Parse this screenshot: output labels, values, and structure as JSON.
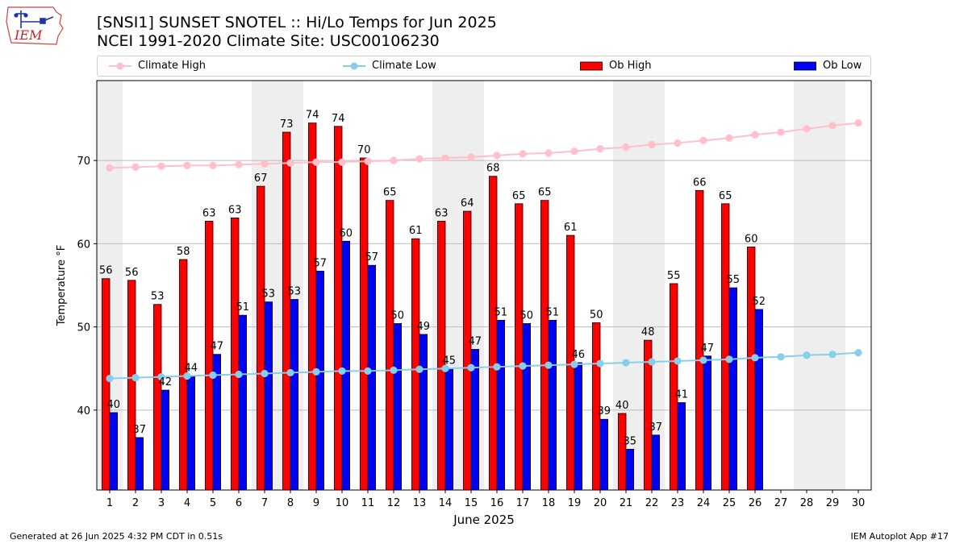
{
  "header": {
    "title_line1": "[SNSI1] SUNSET SNOTEL :: Hi/Lo Temps for Jun 2025",
    "title_line2": "NCEI 1991-2020 Climate Site: USC00106230",
    "logo_text": "IEM"
  },
  "legend": {
    "climate_high": "Climate High",
    "climate_low": "Climate Low",
    "ob_high": "Ob High",
    "ob_low": "Ob Low"
  },
  "footer": {
    "left": "Generated at 26 Jun 2025 4:32 PM CDT in 0.51s",
    "right": "IEM Autoplot App #17"
  },
  "colors": {
    "ob_high": "#ff0000",
    "ob_low": "#0000ff",
    "climate_high": "#ffc0cb",
    "climate_low": "#87ceeb",
    "weekend_band": "#eeeeee",
    "grid": "#bbbbbb"
  },
  "chart_data": {
    "type": "bar",
    "title": "[SNSI1] SUNSET SNOTEL :: Hi/Lo Temps for Jun 2025",
    "xlabel": "June 2025",
    "ylabel": "Temperature °F",
    "ylim": [
      30.4,
      79.6
    ],
    "yticks": [
      40,
      50,
      60,
      70
    ],
    "grid": "horizontal",
    "legend_position": "top",
    "days": [
      1,
      2,
      3,
      4,
      5,
      6,
      7,
      8,
      9,
      10,
      11,
      12,
      13,
      14,
      15,
      16,
      17,
      18,
      19,
      20,
      21,
      22,
      23,
      24,
      25,
      26,
      27,
      28,
      29,
      30
    ],
    "weekend_days": [
      1,
      7,
      8,
      14,
      15,
      21,
      22,
      28,
      29
    ],
    "series": [
      {
        "name": "Ob High",
        "kind": "bar",
        "values": [
          55.8,
          55.6,
          52.7,
          58.1,
          62.7,
          63.1,
          66.9,
          73.4,
          74.5,
          74.1,
          70.3,
          65.2,
          60.6,
          62.7,
          63.9,
          68.1,
          64.8,
          65.2,
          61.0,
          50.5,
          39.6,
          48.4,
          55.2,
          66.4,
          64.8,
          59.6
        ],
        "labels": [
          "56",
          "56",
          "53",
          "58",
          "63",
          "63",
          "67",
          "73",
          "74",
          "74",
          "70",
          "65",
          "61",
          "63",
          "64",
          "68",
          "65",
          "65",
          "61",
          "50",
          "40",
          "48",
          "55",
          "66",
          "65",
          "60"
        ]
      },
      {
        "name": "Ob Low",
        "kind": "bar",
        "values": [
          39.7,
          36.7,
          42.4,
          44.1,
          46.7,
          51.4,
          53.0,
          53.3,
          56.7,
          60.3,
          57.4,
          50.4,
          49.1,
          45.0,
          47.3,
          50.8,
          50.4,
          50.8,
          45.7,
          38.9,
          35.3,
          37.0,
          40.9,
          46.5,
          54.7,
          52.1
        ],
        "labels": [
          "40",
          "37",
          "42",
          "44",
          "47",
          "51",
          "53",
          "53",
          "57",
          "60",
          "57",
          "50",
          "49",
          "45",
          "47",
          "51",
          "50",
          "51",
          "46",
          "39",
          "35",
          "37",
          "41",
          "47",
          "55",
          "52"
        ]
      },
      {
        "name": "Climate High",
        "kind": "line",
        "values": [
          69.1,
          69.2,
          69.3,
          69.4,
          69.4,
          69.5,
          69.6,
          69.7,
          69.8,
          69.8,
          69.9,
          70.0,
          70.2,
          70.3,
          70.4,
          70.6,
          70.8,
          70.9,
          71.1,
          71.4,
          71.6,
          71.9,
          72.1,
          72.4,
          72.7,
          73.1,
          73.4,
          73.8,
          74.2,
          74.5
        ]
      },
      {
        "name": "Climate Low",
        "kind": "line",
        "values": [
          43.8,
          43.9,
          44.0,
          44.1,
          44.2,
          44.3,
          44.4,
          44.5,
          44.6,
          44.7,
          44.7,
          44.8,
          44.9,
          45.0,
          45.1,
          45.2,
          45.3,
          45.4,
          45.5,
          45.6,
          45.7,
          45.8,
          45.9,
          46.0,
          46.1,
          46.3,
          46.4,
          46.6,
          46.7,
          46.9
        ]
      }
    ]
  }
}
